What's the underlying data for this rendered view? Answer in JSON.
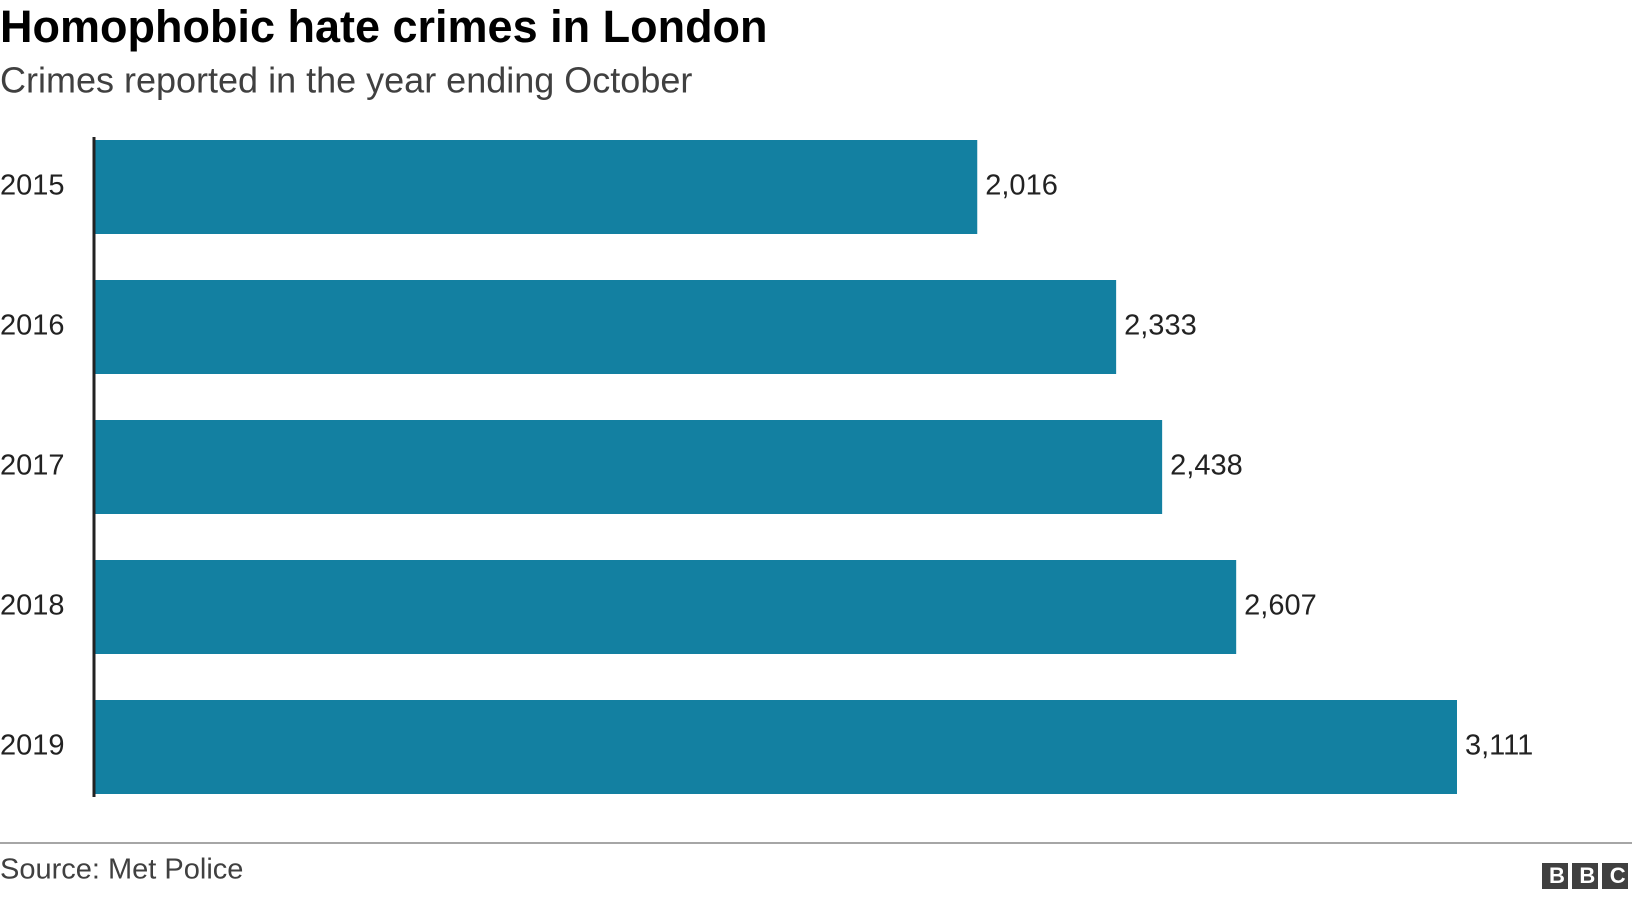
{
  "chart_data": {
    "type": "bar",
    "orientation": "horizontal",
    "title": "Homophobic hate crimes in London",
    "subtitle": "Crimes reported in the year ending October",
    "categories": [
      "2015",
      "2016",
      "2017",
      "2018",
      "2019"
    ],
    "values": [
      2016,
      2333,
      2438,
      2607,
      3111
    ],
    "value_labels": [
      "2,016",
      "2,333",
      "2,438",
      "2,607",
      "3,111"
    ],
    "color": "#1380a1",
    "source": "Source: Met Police",
    "logo": "BBC"
  }
}
